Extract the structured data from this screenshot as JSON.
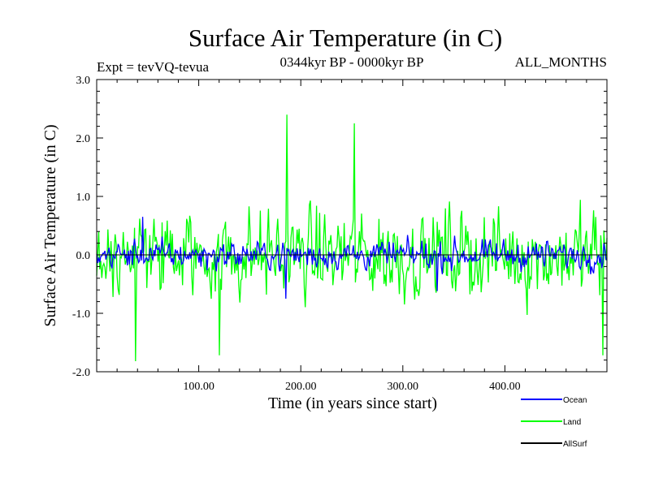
{
  "chart_data": {
    "type": "line",
    "title": "Surface Air Temperature (in C)",
    "subtitle_left": "Expt = tevVQ-tevua",
    "subtitle_center": "0344kyr BP - 0000kyr BP",
    "subtitle_right": "ALL_MONTHS",
    "xlabel": "Time (in years since start)",
    "ylabel": "Surface Air Temperature (in C)",
    "xlim": [
      0,
      500
    ],
    "ylim": [
      -2.0,
      3.0
    ],
    "x_ticks": [
      {
        "value": 100,
        "label": "100.00"
      },
      {
        "value": 200,
        "label": "200.00"
      },
      {
        "value": 300,
        "label": "300.00"
      },
      {
        "value": 400,
        "label": "400.00"
      }
    ],
    "y_ticks": [
      {
        "value": 3.0,
        "label": "3.0"
      },
      {
        "value": 2.0,
        "label": "2.0"
      },
      {
        "value": 1.0,
        "label": "1.0"
      },
      {
        "value": 0.0,
        "label": "0.0"
      },
      {
        "value": -1.0,
        "label": "-1.0"
      },
      {
        "value": -2.0,
        "label": "-2.0"
      }
    ],
    "legend_position": "bottom-right",
    "grid": false,
    "zero_line": true,
    "series": [
      {
        "name": "Land",
        "color": "#00ff00",
        "amplitude": 0.55,
        "draw_order": 1,
        "extremes": [
          [
            186,
            2.4
          ],
          [
            252,
            2.25
          ],
          [
            38,
            -1.82
          ],
          [
            120,
            -1.72
          ],
          [
            495,
            -1.72
          ]
        ]
      },
      {
        "name": "Ocean",
        "color": "#0000ff",
        "amplitude": 0.17,
        "draw_order": 2,
        "extremes": [
          [
            185,
            -0.75
          ],
          [
            333,
            -0.62
          ],
          [
            45,
            0.65
          ]
        ]
      },
      {
        "name": "AllSurf",
        "color": "#000000",
        "amplitude": 0.0,
        "draw_order": 3,
        "extremes": []
      }
    ],
    "legend": [
      {
        "name": "Ocean",
        "color": "#0000ff"
      },
      {
        "name": "Land",
        "color": "#00ff00"
      },
      {
        "name": "AllSurf",
        "color": "#000000"
      }
    ]
  }
}
